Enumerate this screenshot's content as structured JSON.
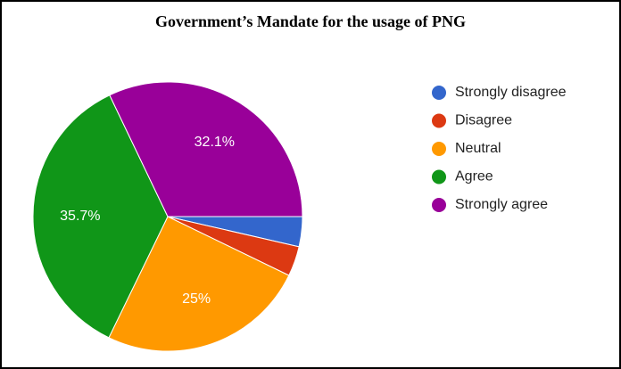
{
  "chart_data": {
    "type": "pie",
    "title": "Government’s Mandate for the usage of PNG",
    "categories": [
      "Strongly disagree",
      "Disagree",
      "Neutral",
      "Agree",
      "Strongly agree"
    ],
    "values": [
      3.6,
      3.6,
      25,
      35.7,
      32.1
    ],
    "value_labels": [
      null,
      null,
      "25%",
      "35.7%",
      "32.1%"
    ],
    "colors": [
      "#3366cc",
      "#dc3912",
      "#ff9900",
      "#109618",
      "#990099"
    ],
    "legend": "right"
  }
}
